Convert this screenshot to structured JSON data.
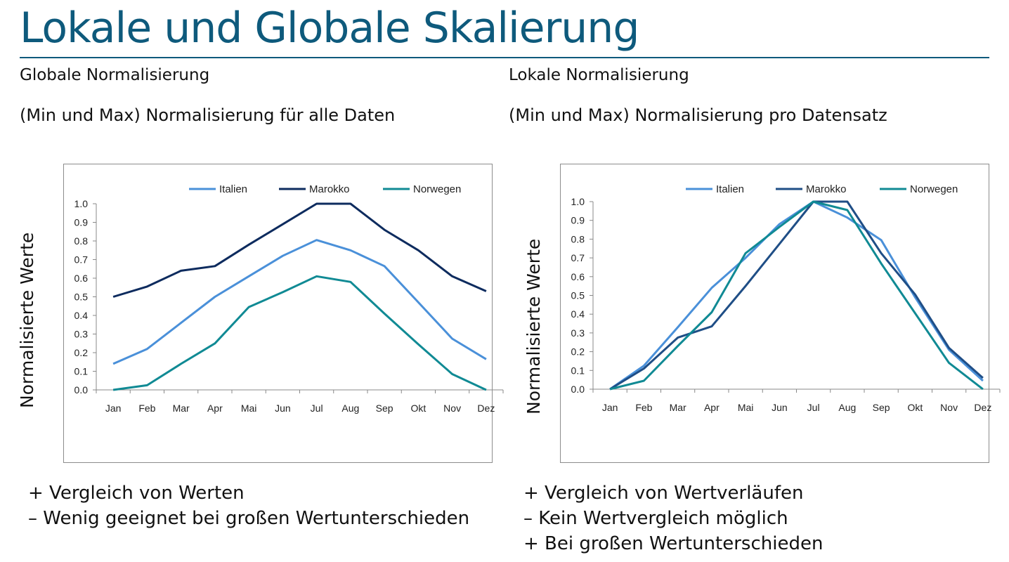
{
  "slide": {
    "title": "Lokale und Globale Skalierung"
  },
  "left": {
    "heading": "Globale Normalisierung",
    "subheading": "(Min und Max) Normalisierung für alle Daten",
    "bullets": [
      "+ Vergleich von Werten",
      "– Wenig geeignet bei großen Wertunterschieden"
    ]
  },
  "right": {
    "heading": "Lokale Normalisierung",
    "subheading": "(Min und Max) Normalisierung pro Datensatz",
    "bullets": [
      "+ Vergleich von Wertverläufen",
      "– Kein Wertvergleich möglich",
      "+ Bei großen Wertunterschieden"
    ]
  },
  "chart_data": [
    {
      "type": "line",
      "title": "",
      "xlabel": "",
      "ylabel": "Normalisierte Werte",
      "ylim": [
        0,
        1
      ],
      "yticks": [
        "0.0",
        "0.1",
        "0.2",
        "0.3",
        "0.4",
        "0.5",
        "0.6",
        "0.7",
        "0.8",
        "0.9",
        "1.0"
      ],
      "grid": false,
      "legend": "top",
      "categories": [
        "Jan",
        "Feb",
        "Mar",
        "Apr",
        "Mai",
        "Jun",
        "Jul",
        "Aug",
        "Sep",
        "Okt",
        "Nov",
        "Dez"
      ],
      "series": [
        {
          "name": "Italien",
          "color": "#4a90d9",
          "values": [
            0.14,
            0.22,
            0.36,
            0.5,
            0.61,
            0.72,
            0.805,
            0.75,
            0.665,
            0.47,
            0.275,
            0.165
          ]
        },
        {
          "name": "Marokko",
          "color": "#0d2b5e",
          "values": [
            0.5,
            0.555,
            0.64,
            0.665,
            0.78,
            0.89,
            1.0,
            1.0,
            0.86,
            0.75,
            0.61,
            0.53
          ]
        },
        {
          "name": "Norwegen",
          "color": "#108a94",
          "values": [
            0.0,
            0.025,
            0.14,
            0.25,
            0.445,
            0.525,
            0.61,
            0.58,
            0.41,
            0.245,
            0.085,
            0.0
          ]
        }
      ]
    },
    {
      "type": "line",
      "title": "",
      "xlabel": "",
      "ylabel": "Normalisierte Werte",
      "ylim": [
        0,
        1
      ],
      "yticks": [
        "0.0",
        "0.1",
        "0.2",
        "0.3",
        "0.4",
        "0.5",
        "0.6",
        "0.7",
        "0.8",
        "0.9",
        "1.0"
      ],
      "grid": false,
      "legend": "top",
      "categories": [
        "Jan",
        "Feb",
        "Mar",
        "Apr",
        "Mai",
        "Jun",
        "Jul",
        "Aug",
        "Sep",
        "Okt",
        "Nov",
        "Dez"
      ],
      "series": [
        {
          "name": "Italien",
          "color": "#4a90d9",
          "values": [
            0.0,
            0.125,
            0.33,
            0.54,
            0.7,
            0.88,
            1.0,
            0.915,
            0.795,
            0.49,
            0.21,
            0.045
          ]
        },
        {
          "name": "Marokko",
          "color": "#1f4e86",
          "values": [
            0.0,
            0.11,
            0.275,
            0.335,
            0.55,
            0.775,
            1.0,
            1.0,
            0.725,
            0.505,
            0.22,
            0.06
          ]
        },
        {
          "name": "Norwegen",
          "color": "#108a94",
          "values": [
            0.0,
            0.045,
            0.23,
            0.41,
            0.725,
            0.865,
            1.0,
            0.955,
            0.67,
            0.405,
            0.14,
            0.0
          ]
        }
      ]
    }
  ]
}
